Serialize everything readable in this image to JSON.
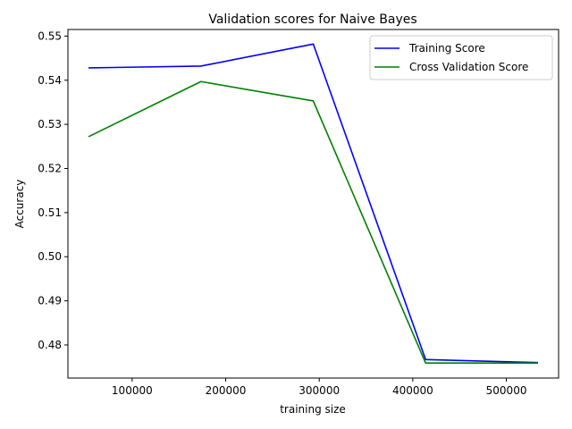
{
  "chart_data": {
    "type": "line",
    "title": "Validation scores for Naive Bayes",
    "xlabel": "training size",
    "ylabel": "Accuracy",
    "x": [
      53400,
      173500,
      293600,
      413700,
      533800
    ],
    "series": [
      {
        "name": "Training Score",
        "color": "#0000ff",
        "values": [
          0.5428,
          0.5432,
          0.5482,
          0.4767,
          0.476
        ]
      },
      {
        "name": "Cross Validation Score",
        "color": "#008000",
        "values": [
          0.5272,
          0.5397,
          0.5353,
          0.4759,
          0.4759
        ]
      }
    ],
    "xlim": [
      31380,
      555820
    ],
    "ylim": [
      0.4725,
      0.5515
    ],
    "xticks": [
      {
        "value": 100000,
        "label": "100000"
      },
      {
        "value": 200000,
        "label": "200000"
      },
      {
        "value": 300000,
        "label": "300000"
      },
      {
        "value": 400000,
        "label": "400000"
      },
      {
        "value": 500000,
        "label": "500000"
      }
    ],
    "yticks": [
      {
        "value": 0.48,
        "label": "0.48"
      },
      {
        "value": 0.49,
        "label": "0.49"
      },
      {
        "value": 0.5,
        "label": "0.50"
      },
      {
        "value": 0.51,
        "label": "0.51"
      },
      {
        "value": 0.52,
        "label": "0.52"
      },
      {
        "value": 0.53,
        "label": "0.53"
      },
      {
        "value": 0.54,
        "label": "0.54"
      },
      {
        "value": 0.55,
        "label": "0.55"
      }
    ],
    "grid": false,
    "legend_position": "top-right"
  }
}
